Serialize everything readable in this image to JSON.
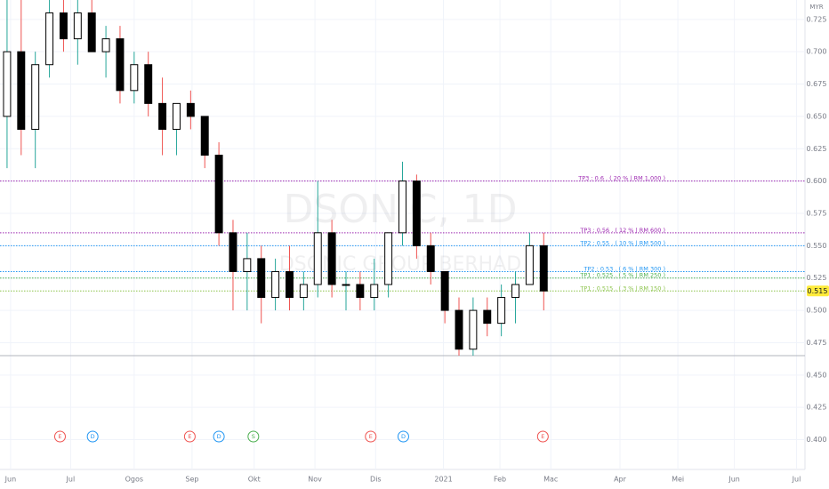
{
  "chart_data": {
    "type": "candlestick",
    "watermark": "DSONIC, 1D",
    "watermark_subtitle": "DSONIC GROUP BERHAD",
    "currency": "MYR",
    "xlim": [
      0,
      57
    ],
    "xticks": [
      {
        "value": 0.75,
        "label": "Jun"
      },
      {
        "value": 5,
        "label": "Jul"
      },
      {
        "value": 9.5,
        "label": "Ogos"
      },
      {
        "value": 13.6,
        "label": "Sep"
      },
      {
        "value": 18,
        "label": "Okt"
      },
      {
        "value": 22.3,
        "label": "Nov"
      },
      {
        "value": 26.6,
        "label": "Dis"
      },
      {
        "value": 31.4,
        "label": "2021"
      },
      {
        "value": 35.4,
        "label": "Feb"
      },
      {
        "value": 39,
        "label": "Mac"
      },
      {
        "value": 43.9,
        "label": "Apr"
      },
      {
        "value": 48,
        "label": "Mei"
      },
      {
        "value": 52,
        "label": "Jun"
      },
      {
        "value": 56.4,
        "label": "Jul"
      }
    ],
    "ylim": [
      0.377,
      0.74
    ],
    "yticks": [
      0.725,
      {
        "value": 0.7,
        "label": "0.700"
      },
      0.675,
      {
        "value": 0.65,
        "label": "0.650"
      },
      0.625,
      {
        "value": 0.6,
        "label": "0.600"
      },
      0.575,
      {
        "value": 0.55,
        "label": "0.550"
      },
      0.525,
      {
        "value": 0.5,
        "label": "0.500"
      },
      0.475,
      {
        "value": 0.45,
        "label": "0.450"
      },
      0.425,
      {
        "value": 0.4,
        "label": "0.400"
      }
    ],
    "grid": true,
    "up_color": "#ffffff",
    "down_color": "#000000",
    "wick_up_color": "#26a69a",
    "wick_down_color": "#ef5350",
    "open": [
      0.65,
      0.7,
      0.64,
      0.69,
      0.73,
      0.71,
      0.73,
      0.7,
      0.71,
      0.67,
      0.69,
      0.66,
      0.64,
      0.66,
      0.65,
      0.62,
      0.56,
      0.53,
      0.54,
      0.51,
      0.53,
      0.51,
      0.52,
      0.56,
      0.52,
      0.52,
      0.51,
      0.52,
      0.56,
      0.6,
      0.55,
      0.53,
      0.5,
      0.47,
      0.5,
      0.49,
      0.51,
      0.52,
      0.55
    ],
    "high": [
      0.74,
      0.74,
      0.7,
      0.74,
      0.74,
      0.74,
      0.74,
      0.72,
      0.72,
      0.7,
      0.7,
      0.68,
      0.66,
      0.67,
      0.65,
      0.63,
      0.57,
      0.56,
      0.55,
      0.54,
      0.55,
      0.53,
      0.6,
      0.57,
      0.53,
      0.53,
      0.54,
      0.56,
      0.615,
      0.605,
      0.56,
      0.53,
      0.51,
      0.51,
      0.51,
      0.52,
      0.53,
      0.56,
      0.56
    ],
    "low": [
      0.61,
      0.62,
      0.61,
      0.68,
      0.7,
      0.69,
      0.7,
      0.68,
      0.66,
      0.66,
      0.65,
      0.62,
      0.62,
      0.64,
      0.61,
      0.55,
      0.5,
      0.5,
      0.49,
      0.5,
      0.5,
      0.5,
      0.51,
      0.51,
      0.5,
      0.5,
      0.5,
      0.51,
      0.55,
      0.54,
      0.52,
      0.49,
      0.465,
      0.465,
      0.48,
      0.48,
      0.49,
      0.52,
      0.5
    ],
    "close": [
      0.7,
      0.64,
      0.69,
      0.73,
      0.71,
      0.73,
      0.7,
      0.71,
      0.67,
      0.69,
      0.66,
      0.64,
      0.66,
      0.65,
      0.62,
      0.56,
      0.53,
      0.54,
      0.51,
      0.53,
      0.51,
      0.52,
      0.56,
      0.52,
      0.52,
      0.51,
      0.52,
      0.56,
      0.6,
      0.55,
      0.53,
      0.5,
      0.47,
      0.5,
      0.49,
      0.51,
      0.52,
      0.55,
      0.515
    ],
    "levels": [
      {
        "value": 0.6,
        "label": "TP3 : 0.6 . ( 20 % | RM 1,000 )",
        "color": "#9c27b0"
      },
      {
        "value": 0.56,
        "label": "TP3 : 0.56 . ( 12 % | RM 600 )",
        "color": "#9c27b0"
      },
      {
        "value": 0.55,
        "label": "TP2 : 0.55 . ( 10 % | RM 500 )",
        "color": "#2196f3"
      },
      {
        "value": 0.53,
        "label": "TP2 : 0.53 . ( 6 % | RM 300 )",
        "color": "#2196f3"
      },
      {
        "value": 0.525,
        "label": "TP1 : 0.525 . ( 5 % | RM 250 )",
        "color": "#4caf50"
      },
      {
        "value": 0.515,
        "label": "TP1 : 0.515 . ( 3 % | RM 150 )",
        "color": "#8bc34a"
      }
    ],
    "support_line": 0.465,
    "last_price": 0.515,
    "events": [
      {
        "label": "E",
        "x": 4.25,
        "color": "#ef5350"
      },
      {
        "label": "D",
        "x": 6.56,
        "color": "#2196f3"
      },
      {
        "label": "E",
        "x": 13.44,
        "color": "#ef5350"
      },
      {
        "label": "D",
        "x": 15.5,
        "color": "#2196f3"
      },
      {
        "label": "S",
        "x": 17.94,
        "color": "#4caf50"
      },
      {
        "label": "E",
        "x": 26.25,
        "color": "#ef5350"
      },
      {
        "label": "D",
        "x": 28.56,
        "color": "#2196f3"
      },
      {
        "label": "E",
        "x": 38.44,
        "color": "#ef5350"
      }
    ]
  }
}
